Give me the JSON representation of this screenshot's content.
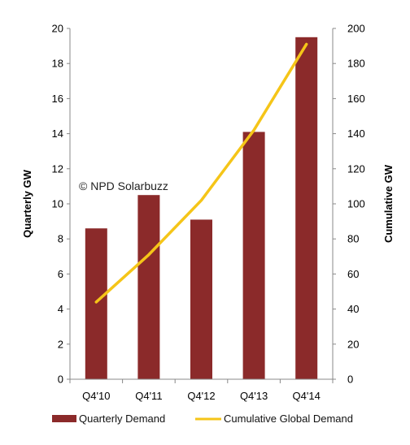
{
  "chart_data": {
    "type": "bar",
    "categories": [
      "Q4'10",
      "Q4'11",
      "Q4'12",
      "Q4'13",
      "Q4'14"
    ],
    "series": [
      {
        "name": "Quarterly Demand",
        "type": "bar",
        "axis": "left",
        "color": "#8b2a2a",
        "values": [
          8.6,
          10.5,
          9.1,
          14.1,
          19.5
        ]
      },
      {
        "name": "Cumulative Global Demand",
        "type": "line",
        "axis": "right",
        "color": "#f5c518",
        "values": [
          44,
          71,
          102,
          142,
          191
        ]
      }
    ],
    "ylabel_left": "Quarterly GW",
    "ylabel_right": "Cumulative GW",
    "ylim_left": [
      0,
      20
    ],
    "ylim_right": [
      0,
      200
    ],
    "yticks_left": [
      "0",
      "2",
      "4",
      "6",
      "8",
      "10",
      "12",
      "14",
      "16",
      "18",
      "20"
    ],
    "yticks_right": [
      "0",
      "20",
      "40",
      "60",
      "80",
      "100",
      "120",
      "140",
      "160",
      "180",
      "200"
    ],
    "annotation": "© NPD  Solarbuzz",
    "grid": false,
    "legend_position": "bottom"
  }
}
